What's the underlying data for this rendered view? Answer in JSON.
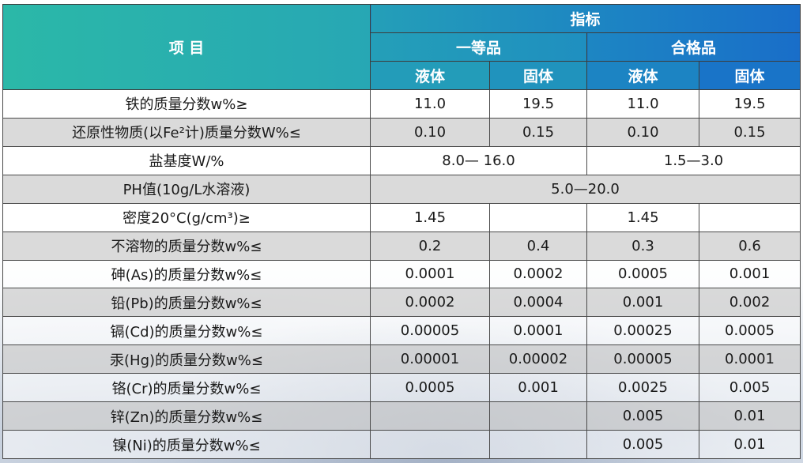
{
  "header": {
    "item_label": "项  目",
    "indicator_label": "指标",
    "grade_first": "一等品",
    "grade_qualified": "合格品",
    "form_liquid": "液体",
    "form_solid": "固体"
  },
  "rows": [
    {
      "name": "铁的质量分数w%≥",
      "cells": [
        "11.0",
        "19.5",
        "11.0",
        "19.5"
      ]
    },
    {
      "name": "还原性物质(以Fe²计)质量分数W%≤",
      "cells": [
        "0.10",
        "0.15",
        "0.10",
        "0.15"
      ]
    },
    {
      "name": "盐基度W/%",
      "first_span": "8.0— 16.0",
      "qualified_span": "1.5—3.0"
    },
    {
      "name": "PH值(10g/L水溶液)",
      "full_span": "5.0—20.0"
    },
    {
      "name": "密度20°C(g/cm³)≥",
      "cells": [
        "1.45",
        "",
        "1.45",
        ""
      ]
    },
    {
      "name": "不溶物的质量分数w%≤",
      "cells": [
        "0.2",
        "0.4",
        "0.3",
        "0.6"
      ]
    },
    {
      "name": "砷(As)的质量分数w%≤",
      "cells": [
        "0.0001",
        "0.0002",
        "0.0005",
        "0.001"
      ]
    },
    {
      "name": "铅(Pb)的质量分数w%≤",
      "cells": [
        "0.0002",
        "0.0004",
        "0.001",
        "0.002"
      ]
    },
    {
      "name": "镉(Cd)的质量分数w%≤",
      "cells": [
        "0.00005",
        "0.0001",
        "0.00025",
        "0.0005"
      ]
    },
    {
      "name": "汞(Hg)的质量分数w%≤",
      "cells": [
        "0.00001",
        "0.00002",
        "0.00005",
        "0.0001"
      ]
    },
    {
      "name": "铬(Cr)的质量分数w%≤",
      "cells": [
        "0.0005",
        "0.001",
        "0.0025",
        "0.005"
      ]
    },
    {
      "name": "锌(Zn)的质量分数w%≤",
      "cells": [
        "",
        "",
        "0.005",
        "0.01"
      ]
    },
    {
      "name": "镍(Ni)的质量分数w%≤",
      "cells": [
        "",
        "",
        "0.005",
        "0.01"
      ]
    }
  ],
  "colors": {
    "header_gradient_start": "#2ab8a9",
    "header_gradient_end": "#1a6fc8",
    "row_alt": "#d0d0d0",
    "border": "#4a4a4a"
  }
}
